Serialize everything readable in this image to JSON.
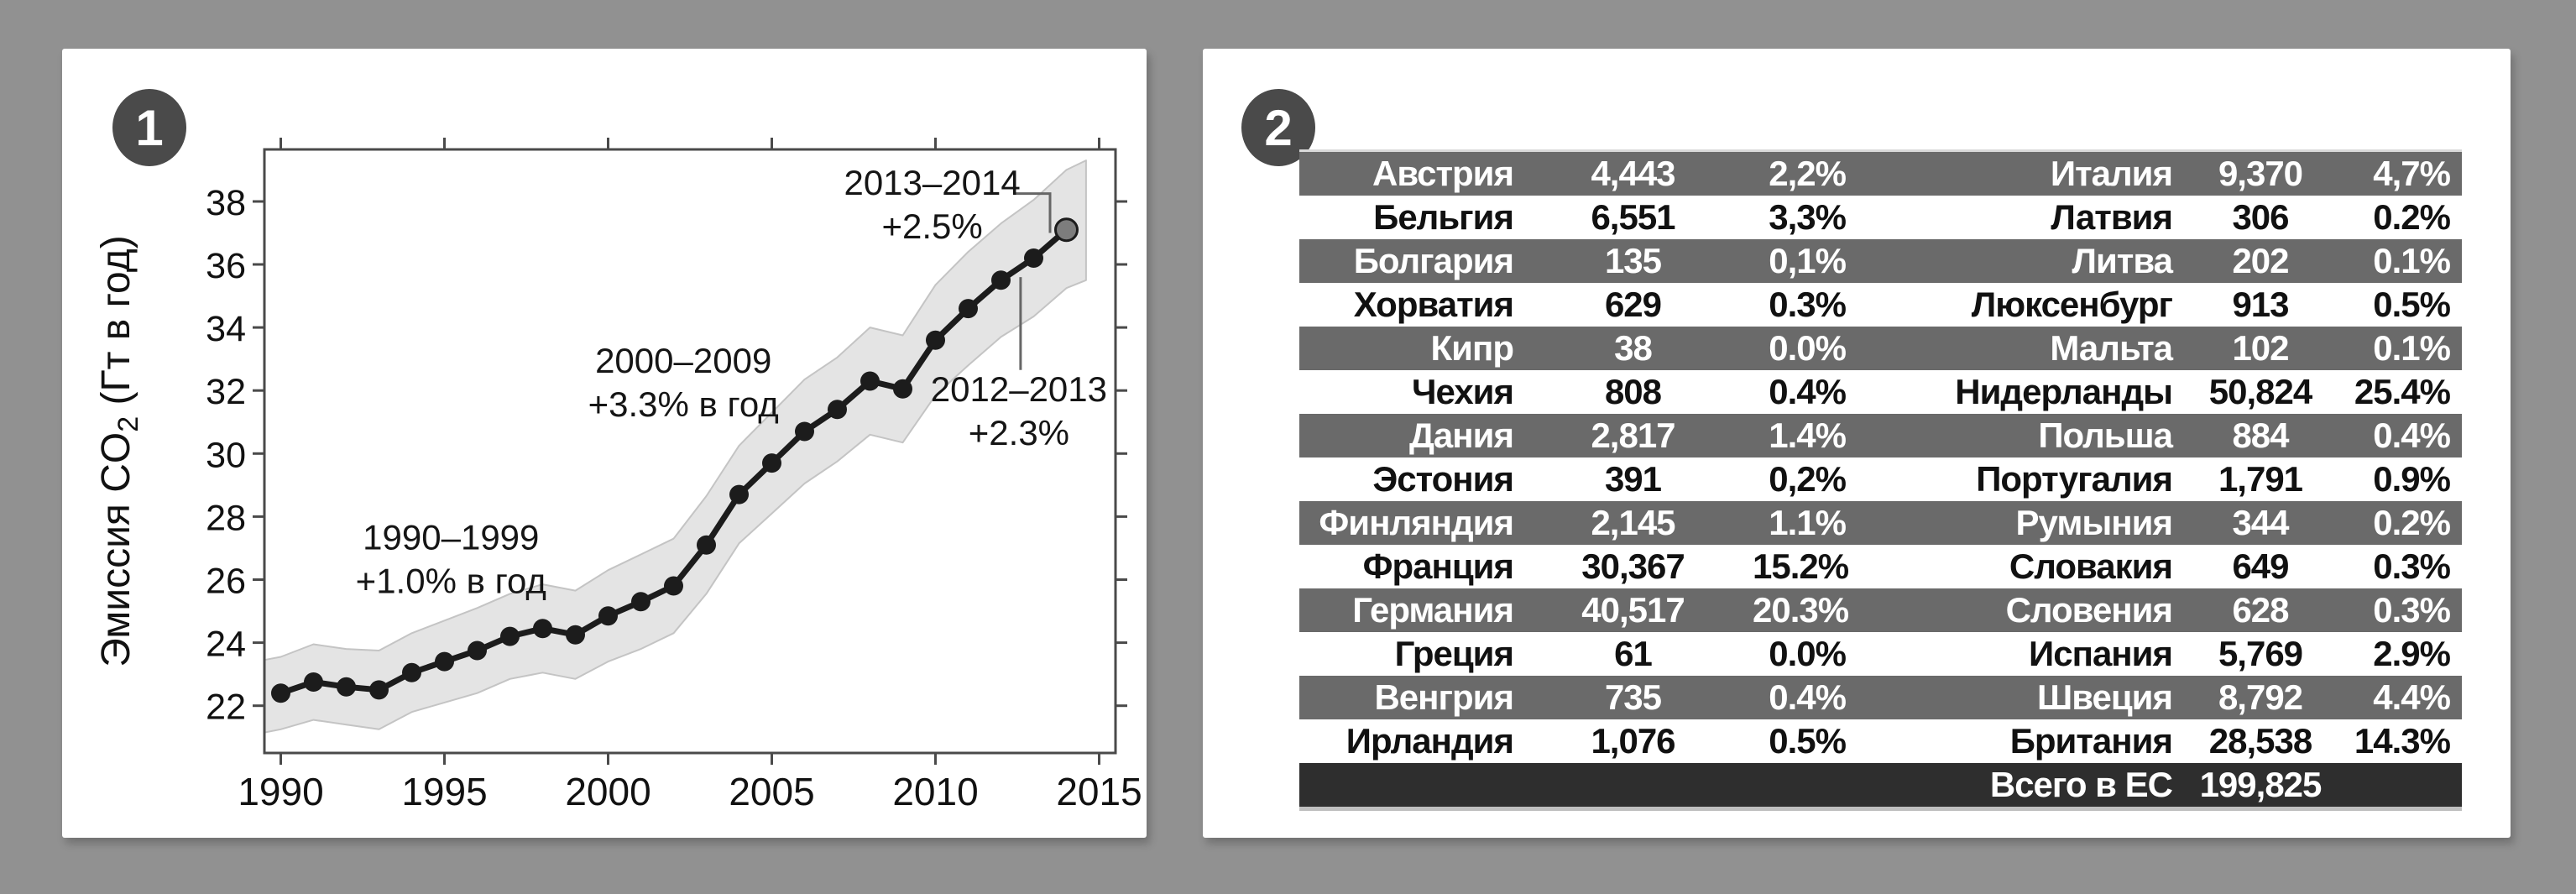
{
  "figures": [
    {
      "badge": "1",
      "description": "co2-emissions-line-chart"
    },
    {
      "badge": "2",
      "description": "eu-emissions-table"
    }
  ],
  "colors": {
    "background": "#919191",
    "panel": "#ffffff",
    "badge": "#4a4a4a",
    "row_dark": "#6a6a6a",
    "row_light": "#ffffff",
    "footer_row": "#2e2e2e",
    "line": "#1c1c1c",
    "band_fill": "#e4e4e4",
    "band_edge": "#c4c4c4",
    "last_point": "#7d7d7d",
    "axis": "#4a4a4a",
    "connector": "#666666"
  },
  "chart_data": [
    {
      "type": "line",
      "title": "",
      "xlabel": "",
      "ylabel": "Эмиссия CO₂ (Гт в год)",
      "legend": "none",
      "grid": false,
      "xlim": [
        1989.5,
        2015.5
      ],
      "ylim": [
        20.5,
        39.65
      ],
      "xticks": [
        1990,
        1995,
        2000,
        2005,
        2010,
        2015
      ],
      "yticks": [
        22,
        24,
        26,
        28,
        30,
        32,
        34,
        36,
        38
      ],
      "x": [
        1990,
        1991,
        1992,
        1993,
        1994,
        1995,
        1996,
        1997,
        1998,
        1999,
        2000,
        2001,
        2002,
        2003,
        2004,
        2005,
        2006,
        2007,
        2008,
        2009,
        2010,
        2011,
        2012,
        2013,
        2014
      ],
      "series": [
        {
          "name": "Эмиссия CO₂ (Гт в год)",
          "values": [
            22.4,
            22.75,
            22.6,
            22.5,
            23.05,
            23.4,
            23.75,
            24.2,
            24.45,
            24.25,
            24.85,
            25.3,
            25.8,
            27.1,
            28.7,
            29.7,
            30.7,
            31.4,
            32.3,
            32.05,
            33.6,
            34.6,
            35.5,
            36.2,
            37.1
          ]
        }
      ],
      "last_point_highlight": true,
      "band": {
        "x": [
          1989.5,
          1990,
          1991,
          1992,
          1993,
          1994,
          1995,
          1996,
          1997,
          1998,
          1999,
          2000,
          2001,
          2002,
          2003,
          2004,
          2005,
          2006,
          2007,
          2008,
          2009,
          2010,
          2011,
          2012,
          2013,
          2014,
          2014.6
        ],
        "upper": [
          23.45,
          23.55,
          23.95,
          23.8,
          23.75,
          24.3,
          24.7,
          25.1,
          25.55,
          25.85,
          25.65,
          26.3,
          26.8,
          27.3,
          28.65,
          30.25,
          31.3,
          32.35,
          33.05,
          34.0,
          33.75,
          35.35,
          36.4,
          37.3,
          38.05,
          39.0,
          39.3
        ],
        "lower": [
          21.15,
          21.25,
          21.55,
          21.4,
          21.25,
          21.8,
          22.1,
          22.4,
          22.85,
          23.05,
          22.85,
          23.4,
          23.8,
          24.3,
          25.55,
          27.15,
          28.1,
          29.05,
          29.75,
          30.6,
          30.35,
          31.85,
          32.8,
          33.7,
          34.35,
          35.25,
          35.5
        ]
      },
      "annotations": [
        {
          "lines": [
            "1990–1999",
            "+1.0% в год"
          ],
          "x": 1995.2,
          "y": 27.35
        },
        {
          "lines": [
            "2000–2009",
            "+3.3% в год"
          ],
          "x": 2002.3,
          "y": 32.95
        },
        {
          "lines": [
            "2013–2014",
            "+2.5%"
          ],
          "x": 2009.9,
          "y": 38.6
        },
        {
          "lines": [
            "2012–2013",
            "+2.3%"
          ],
          "x": 2012.55,
          "y": 32.05
        }
      ],
      "connectors": [
        [
          [
            2012.4,
            38.25
          ],
          [
            2013.5,
            38.25
          ],
          [
            2013.5,
            37.0
          ]
        ],
        [
          [
            2012.6,
            35.6
          ],
          [
            2012.6,
            32.65
          ]
        ]
      ]
    },
    {
      "type": "table",
      "rows": [
        [
          "Австрия",
          "4,443",
          "2,2%",
          "Италия",
          "9,370",
          "4,7%"
        ],
        [
          "Бельгия",
          "6,551",
          "3,3%",
          "Латвия",
          "306",
          "0.2%"
        ],
        [
          "Болгария",
          "135",
          "0,1%",
          "Литва",
          "202",
          "0.1%"
        ],
        [
          "Хорватия",
          "629",
          "0.3%",
          "Люксенбург",
          "913",
          "0.5%"
        ],
        [
          "Кипр",
          "38",
          "0.0%",
          "Мальта",
          "102",
          "0.1%"
        ],
        [
          "Чехия",
          "808",
          "0.4%",
          "Нидерланды",
          "50,824",
          "25.4%"
        ],
        [
          "Дания",
          "2,817",
          "1.4%",
          "Польша",
          "884",
          "0.4%"
        ],
        [
          "Эстония",
          "391",
          "0,2%",
          "Португалия",
          "1,791",
          "0.9%"
        ],
        [
          "Финляндия",
          "2,145",
          "1.1%",
          "Румыния",
          "344",
          "0.2%"
        ],
        [
          "Франция",
          "30,367",
          "15.2%",
          "Словакия",
          "649",
          "0.3%"
        ],
        [
          "Германия",
          "40,517",
          "20.3%",
          "Словения",
          "628",
          "0.3%"
        ],
        [
          "Греция",
          "61",
          "0.0%",
          "Испания",
          "5,769",
          "2.9%"
        ],
        [
          "Венгрия",
          "735",
          "0.4%",
          "Швеция",
          "8,792",
          "4.4%"
        ],
        [
          "Ирландия",
          "1,076",
          "0.5%",
          "Британия",
          "28,538",
          "14.3%"
        ]
      ],
      "footer": {
        "label": "Всего в ЕС",
        "value": "199,825"
      }
    }
  ]
}
